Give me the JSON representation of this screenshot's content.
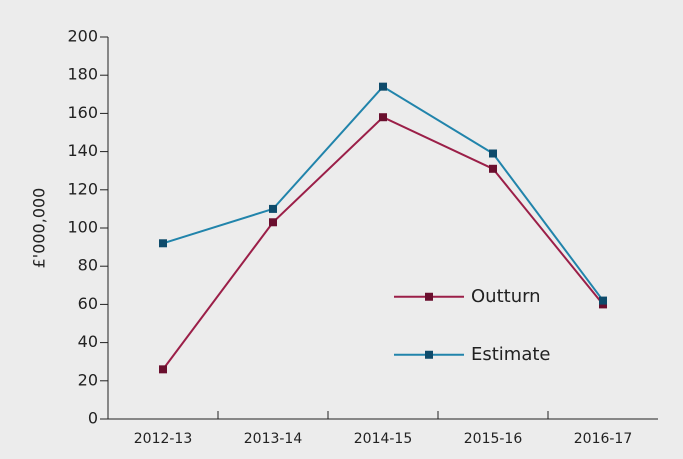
{
  "chart_data": {
    "type": "line",
    "y_label": "£'000,000",
    "categories": [
      "2012-13",
      "2013-14",
      "2014-15",
      "2015-16",
      "2016-17"
    ],
    "series": [
      {
        "name": "Outturn",
        "color": "#9b1f48",
        "marker_color": "#6a0f2e",
        "values": [
          26,
          103,
          158,
          131,
          60
        ]
      },
      {
        "name": "Estimate",
        "color": "#2184ab",
        "marker_color": "#0e4b6b",
        "values": [
          92,
          110,
          174,
          139,
          62
        ]
      }
    ],
    "ylim": [
      0,
      200
    ],
    "yticks": [
      0,
      20,
      40,
      60,
      80,
      100,
      120,
      140,
      160,
      180,
      200
    ],
    "grid": false,
    "legend": "lower right"
  }
}
